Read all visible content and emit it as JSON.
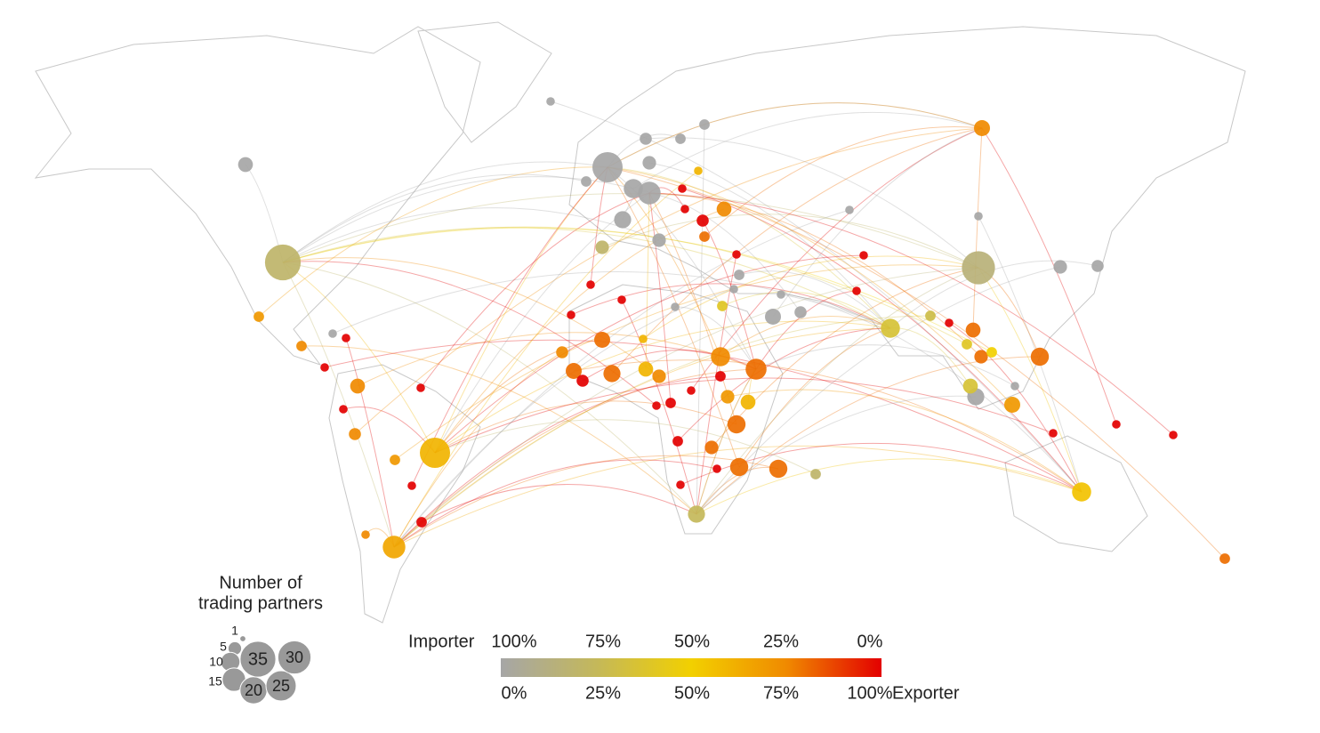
{
  "legend": {
    "size_title": [
      "Number of",
      "trading partners"
    ],
    "sizes": [
      1,
      5,
      10,
      15,
      20,
      25,
      30,
      35
    ],
    "importer_label": "Importer",
    "exporter_label": "Exporter",
    "importer_ticks": [
      {
        "value": 100,
        "label": "100%"
      },
      {
        "value": 75,
        "label": "75%"
      },
      {
        "value": 50,
        "label": "50%"
      },
      {
        "value": 25,
        "label": "25%"
      },
      {
        "value": 0,
        "label": "0%"
      }
    ],
    "exporter_ticks": [
      {
        "value": 0,
        "label": "0%"
      },
      {
        "value": 25,
        "label": "25%"
      },
      {
        "value": 50,
        "label": "50%"
      },
      {
        "value": 75,
        "label": "75%"
      },
      {
        "value": 100,
        "label": "100%"
      }
    ],
    "color_scale": [
      "#a6a6a6",
      "#c4b85a",
      "#f2d000",
      "#f08a00",
      "#e30000"
    ]
  },
  "nodes": [
    {
      "partners": 6,
      "exporter": 0
    },
    {
      "partners": 35,
      "exporter": 20
    },
    {
      "partners": 3,
      "exporter": 70
    },
    {
      "partners": 3,
      "exporter": 75
    },
    {
      "partners": 2,
      "exporter": 0
    },
    {
      "partners": 2,
      "exporter": 100
    },
    {
      "partners": 2,
      "exporter": 100
    },
    {
      "partners": 6,
      "exporter": 75
    },
    {
      "partners": 2,
      "exporter": 100
    },
    {
      "partners": 4,
      "exporter": 75
    },
    {
      "partners": 2,
      "exporter": 100
    },
    {
      "partners": 25,
      "exporter": 60
    },
    {
      "partners": 3,
      "exporter": 70
    },
    {
      "partners": 2,
      "exporter": 100
    },
    {
      "partners": 3,
      "exporter": 100
    },
    {
      "partners": 14,
      "exporter": 65
    },
    {
      "partners": 2,
      "exporter": 75
    },
    {
      "partners": 2,
      "exporter": 0
    },
    {
      "partners": 25,
      "exporter": 0
    },
    {
      "partners": 14,
      "exporter": 0
    },
    {
      "partners": 10,
      "exporter": 0
    },
    {
      "partners": 8,
      "exporter": 0
    },
    {
      "partners": 5,
      "exporter": 0
    },
    {
      "partners": 4,
      "exporter": 0
    },
    {
      "partners": 3,
      "exporter": 0
    },
    {
      "partners": 3,
      "exporter": 0
    },
    {
      "partners": 5,
      "exporter": 0
    },
    {
      "partners": 2,
      "exporter": 60
    },
    {
      "partners": 2,
      "exporter": 100
    },
    {
      "partners": 4,
      "exporter": 100
    },
    {
      "partners": 6,
      "exporter": 75
    },
    {
      "partners": 3,
      "exporter": 80
    },
    {
      "partners": 2,
      "exporter": 100
    },
    {
      "partners": 3,
      "exporter": 0
    },
    {
      "partners": 5,
      "exporter": 20
    },
    {
      "partners": 2,
      "exporter": 100
    },
    {
      "partners": 2,
      "exporter": 100
    },
    {
      "partners": 2,
      "exporter": 100
    },
    {
      "partners": 4,
      "exporter": 75
    },
    {
      "partners": 7,
      "exporter": 80
    },
    {
      "partners": 4,
      "exporter": 100
    },
    {
      "partners": 7,
      "exporter": 80
    },
    {
      "partners": 8,
      "exporter": 80
    },
    {
      "partners": 6,
      "exporter": 60
    },
    {
      "partners": 5,
      "exporter": 75
    },
    {
      "partners": 2,
      "exporter": 60
    },
    {
      "partners": 10,
      "exporter": 75
    },
    {
      "partners": 12,
      "exporter": 80
    },
    {
      "partners": 3,
      "exporter": 40
    },
    {
      "partners": 3,
      "exporter": 100
    },
    {
      "partners": 5,
      "exporter": 70
    },
    {
      "partners": 6,
      "exporter": 60
    },
    {
      "partners": 9,
      "exporter": 80
    },
    {
      "partners": 2,
      "exporter": 100
    },
    {
      "partners": 3,
      "exporter": 100
    },
    {
      "partners": 2,
      "exporter": 100
    },
    {
      "partners": 5,
      "exporter": 80
    },
    {
      "partners": 9,
      "exporter": 80
    },
    {
      "partners": 9,
      "exporter": 80
    },
    {
      "partners": 3,
      "exporter": 100
    },
    {
      "partners": 2,
      "exporter": 100
    },
    {
      "partners": 2,
      "exporter": 100
    },
    {
      "partners": 8,
      "exporter": 25
    },
    {
      "partners": 3,
      "exporter": 20
    },
    {
      "partners": 7,
      "exporter": 0
    },
    {
      "partners": 4,
      "exporter": 0
    },
    {
      "partners": 10,
      "exporter": 35
    },
    {
      "partners": 30,
      "exporter": 15
    },
    {
      "partners": 7,
      "exporter": 75
    },
    {
      "partners": 5,
      "exporter": 0
    },
    {
      "partners": 4,
      "exporter": 0
    },
    {
      "partners": 2,
      "exporter": 0
    },
    {
      "partners": 2,
      "exporter": 0
    },
    {
      "partners": 2,
      "exporter": 100
    },
    {
      "partners": 2,
      "exporter": 100
    },
    {
      "partners": 6,
      "exporter": 80
    },
    {
      "partners": 5,
      "exporter": 80
    },
    {
      "partners": 3,
      "exporter": 50
    },
    {
      "partners": 9,
      "exporter": 80
    },
    {
      "partners": 7,
      "exporter": 70
    },
    {
      "partners": 8,
      "exporter": 0
    },
    {
      "partners": 6,
      "exporter": 35
    },
    {
      "partners": 3,
      "exporter": 30
    },
    {
      "partners": 2,
      "exporter": 100
    },
    {
      "partners": 2,
      "exporter": 0
    },
    {
      "partners": 2,
      "exporter": 100
    },
    {
      "partners": 2,
      "exporter": 100
    },
    {
      "partners": 2,
      "exporter": 100
    },
    {
      "partners": 3,
      "exporter": 40
    },
    {
      "partners": 10,
      "exporter": 55
    },
    {
      "partners": 3,
      "exporter": 80
    },
    {
      "partners": 2,
      "exporter": 100
    },
    {
      "partners": 3,
      "exporter": 0
    },
    {
      "partners": 2,
      "exporter": 0
    },
    {
      "partners": 2,
      "exporter": 0
    },
    {
      "partners": 2,
      "exporter": 0
    }
  ]
}
